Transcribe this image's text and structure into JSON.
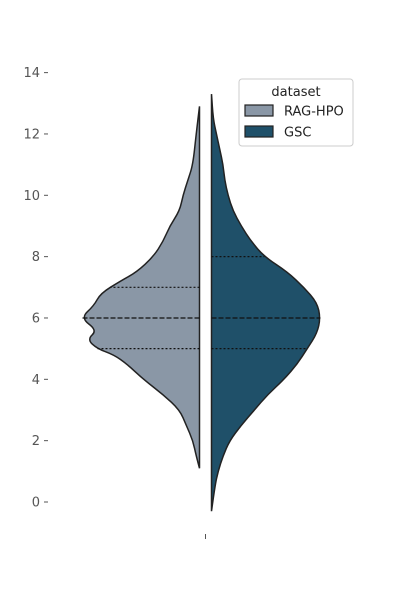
{
  "chart_data": {
    "type": "violin",
    "title": "",
    "xlabel": "",
    "ylabel": "",
    "ylim": [
      -1.2,
      15.5
    ],
    "yticks": [
      0,
      2,
      4,
      6,
      8,
      10,
      12,
      14
    ],
    "xticks": [
      ""
    ],
    "grid": false,
    "legend": {
      "title": "dataset",
      "position": "top-right",
      "entries": [
        "RAG-HPO",
        "GSC"
      ]
    },
    "split": true,
    "series": [
      {
        "name": "RAG-HPO",
        "side": "left",
        "color": "#8a97a6",
        "range": [
          1.1,
          12.9
        ],
        "quartiles": {
          "q1": 5.0,
          "median": 6.0,
          "q3": 7.0
        },
        "density": [
          [
            1.1,
            0.0
          ],
          [
            1.5,
            0.01
          ],
          [
            2.0,
            0.02
          ],
          [
            2.5,
            0.04
          ],
          [
            3.0,
            0.06
          ],
          [
            3.5,
            0.11
          ],
          [
            4.0,
            0.17
          ],
          [
            4.5,
            0.22
          ],
          [
            4.8,
            0.26
          ],
          [
            5.0,
            0.31
          ],
          [
            5.3,
            0.34
          ],
          [
            5.6,
            0.31
          ],
          [
            6.0,
            0.36
          ],
          [
            6.4,
            0.32
          ],
          [
            6.8,
            0.3
          ],
          [
            7.2,
            0.24
          ],
          [
            7.5,
            0.19
          ],
          [
            8.0,
            0.14
          ],
          [
            8.5,
            0.11
          ],
          [
            9.0,
            0.09
          ],
          [
            9.5,
            0.06
          ],
          [
            10.0,
            0.05
          ],
          [
            10.5,
            0.035
          ],
          [
            11.0,
            0.02
          ],
          [
            12.0,
            0.01
          ],
          [
            12.9,
            0.0
          ]
        ]
      },
      {
        "name": "GSC",
        "side": "right",
        "color": "#1f5069",
        "range": [
          -0.3,
          13.3
        ],
        "quartiles": {
          "q1": 5.0,
          "median": 6.0,
          "q3": 8.0
        },
        "density": [
          [
            -0.3,
            0.0
          ],
          [
            0.5,
            0.01
          ],
          [
            1.0,
            0.02
          ],
          [
            1.5,
            0.035
          ],
          [
            2.0,
            0.055
          ],
          [
            2.5,
            0.09
          ],
          [
            3.0,
            0.13
          ],
          [
            3.5,
            0.17
          ],
          [
            4.0,
            0.22
          ],
          [
            4.5,
            0.26
          ],
          [
            5.0,
            0.29
          ],
          [
            5.5,
            0.32
          ],
          [
            6.0,
            0.33
          ],
          [
            6.5,
            0.32
          ],
          [
            7.0,
            0.28
          ],
          [
            7.5,
            0.23
          ],
          [
            8.0,
            0.16
          ],
          [
            8.5,
            0.12
          ],
          [
            9.0,
            0.09
          ],
          [
            9.5,
            0.065
          ],
          [
            10.0,
            0.05
          ],
          [
            10.5,
            0.04
          ],
          [
            11.0,
            0.035
          ],
          [
            11.5,
            0.025
          ],
          [
            12.0,
            0.015
          ],
          [
            12.5,
            0.005
          ],
          [
            13.3,
            0.0
          ]
        ]
      }
    ]
  }
}
